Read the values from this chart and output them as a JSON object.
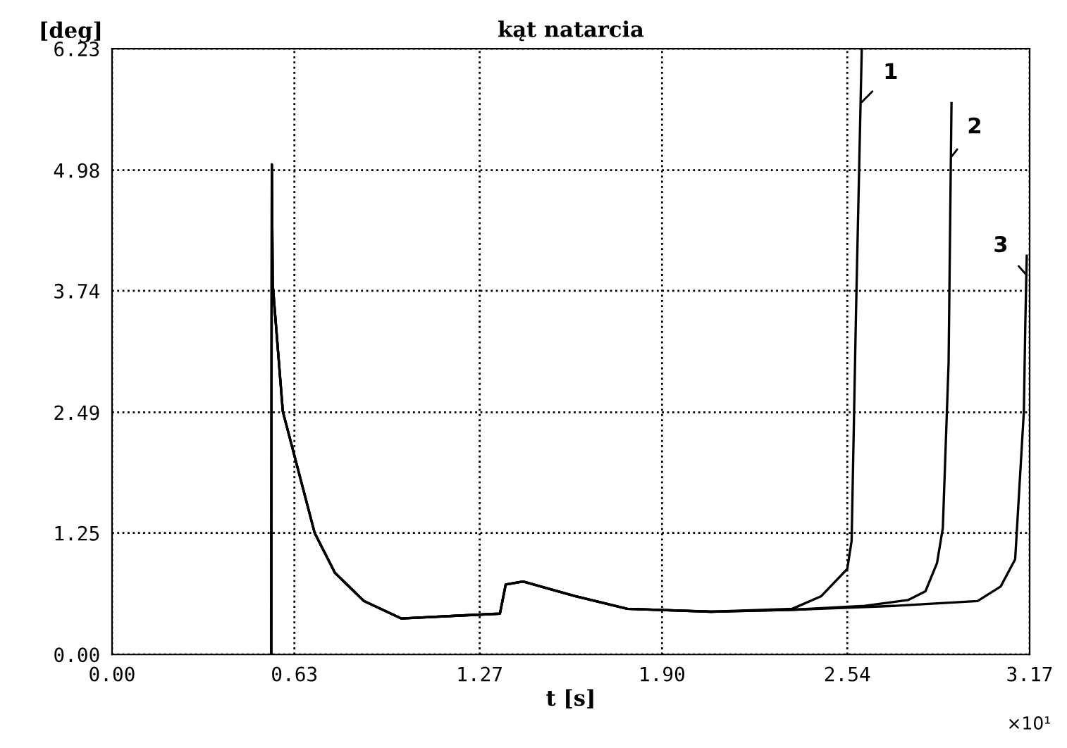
{
  "chart_data": {
    "type": "line",
    "title": "kąt natarcia",
    "xlabel": "t [s]",
    "ylabel": "[deg]",
    "xlim": [
      0,
      3.17
    ],
    "ylim": [
      0,
      6.23
    ],
    "xticks": [
      {
        "value": 0,
        "label": "0.00"
      },
      0.63,
      1.27,
      {
        "value": 1.9,
        "label": "1.90"
      },
      2.54,
      3.17
    ],
    "yticks": [
      {
        "value": 0,
        "label": "0.00"
      },
      1.25,
      2.49,
      3.74,
      4.98,
      6.23
    ],
    "grid": true,
    "line_style": "solid",
    "series": [
      {
        "name": "1",
        "color": "#000000",
        "x": [
          0.55,
          0.552,
          0.555,
          0.59,
          0.7,
          0.77,
          0.87,
          1.0,
          1.2,
          1.34,
          1.36,
          1.42,
          1.6,
          1.78,
          2.07,
          2.35,
          2.45,
          2.54,
          2.555,
          2.57,
          2.59
        ],
        "values": [
          0,
          5.04,
          3.81,
          2.5,
          1.25,
          0.84,
          0.55,
          0.37,
          0.4,
          0.42,
          0.72,
          0.75,
          0.6,
          0.47,
          0.44,
          0.47,
          0.6,
          0.88,
          1.17,
          3.5,
          6.23
        ]
      },
      {
        "name": "2",
        "color": "#000000",
        "x": [
          0.55,
          0.552,
          0.555,
          0.59,
          0.7,
          0.77,
          0.87,
          1.0,
          1.2,
          1.34,
          1.36,
          1.42,
          1.6,
          1.78,
          2.07,
          2.35,
          2.6,
          2.75,
          2.81,
          2.85,
          2.87,
          2.89,
          2.9
        ],
        "values": [
          0,
          5.04,
          3.81,
          2.5,
          1.25,
          0.84,
          0.55,
          0.37,
          0.4,
          0.42,
          0.72,
          0.75,
          0.6,
          0.47,
          0.44,
          0.46,
          0.5,
          0.56,
          0.65,
          0.94,
          1.3,
          3.0,
          5.67
        ]
      },
      {
        "name": "3",
        "color": "#000000",
        "x": [
          0.55,
          0.552,
          0.555,
          0.59,
          0.7,
          0.77,
          0.87,
          1.0,
          1.2,
          1.34,
          1.36,
          1.42,
          1.6,
          1.78,
          2.07,
          2.35,
          2.7,
          2.99,
          3.07,
          3.12,
          3.15,
          3.155,
          3.16
        ],
        "values": [
          0,
          5.04,
          3.81,
          2.5,
          1.25,
          0.84,
          0.55,
          0.37,
          0.4,
          0.42,
          0.72,
          0.75,
          0.6,
          0.47,
          0.44,
          0.46,
          0.5,
          0.55,
          0.7,
          0.98,
          2.5,
          3.4,
          4.1
        ]
      }
    ],
    "annotations": [
      "×10¹"
    ]
  }
}
